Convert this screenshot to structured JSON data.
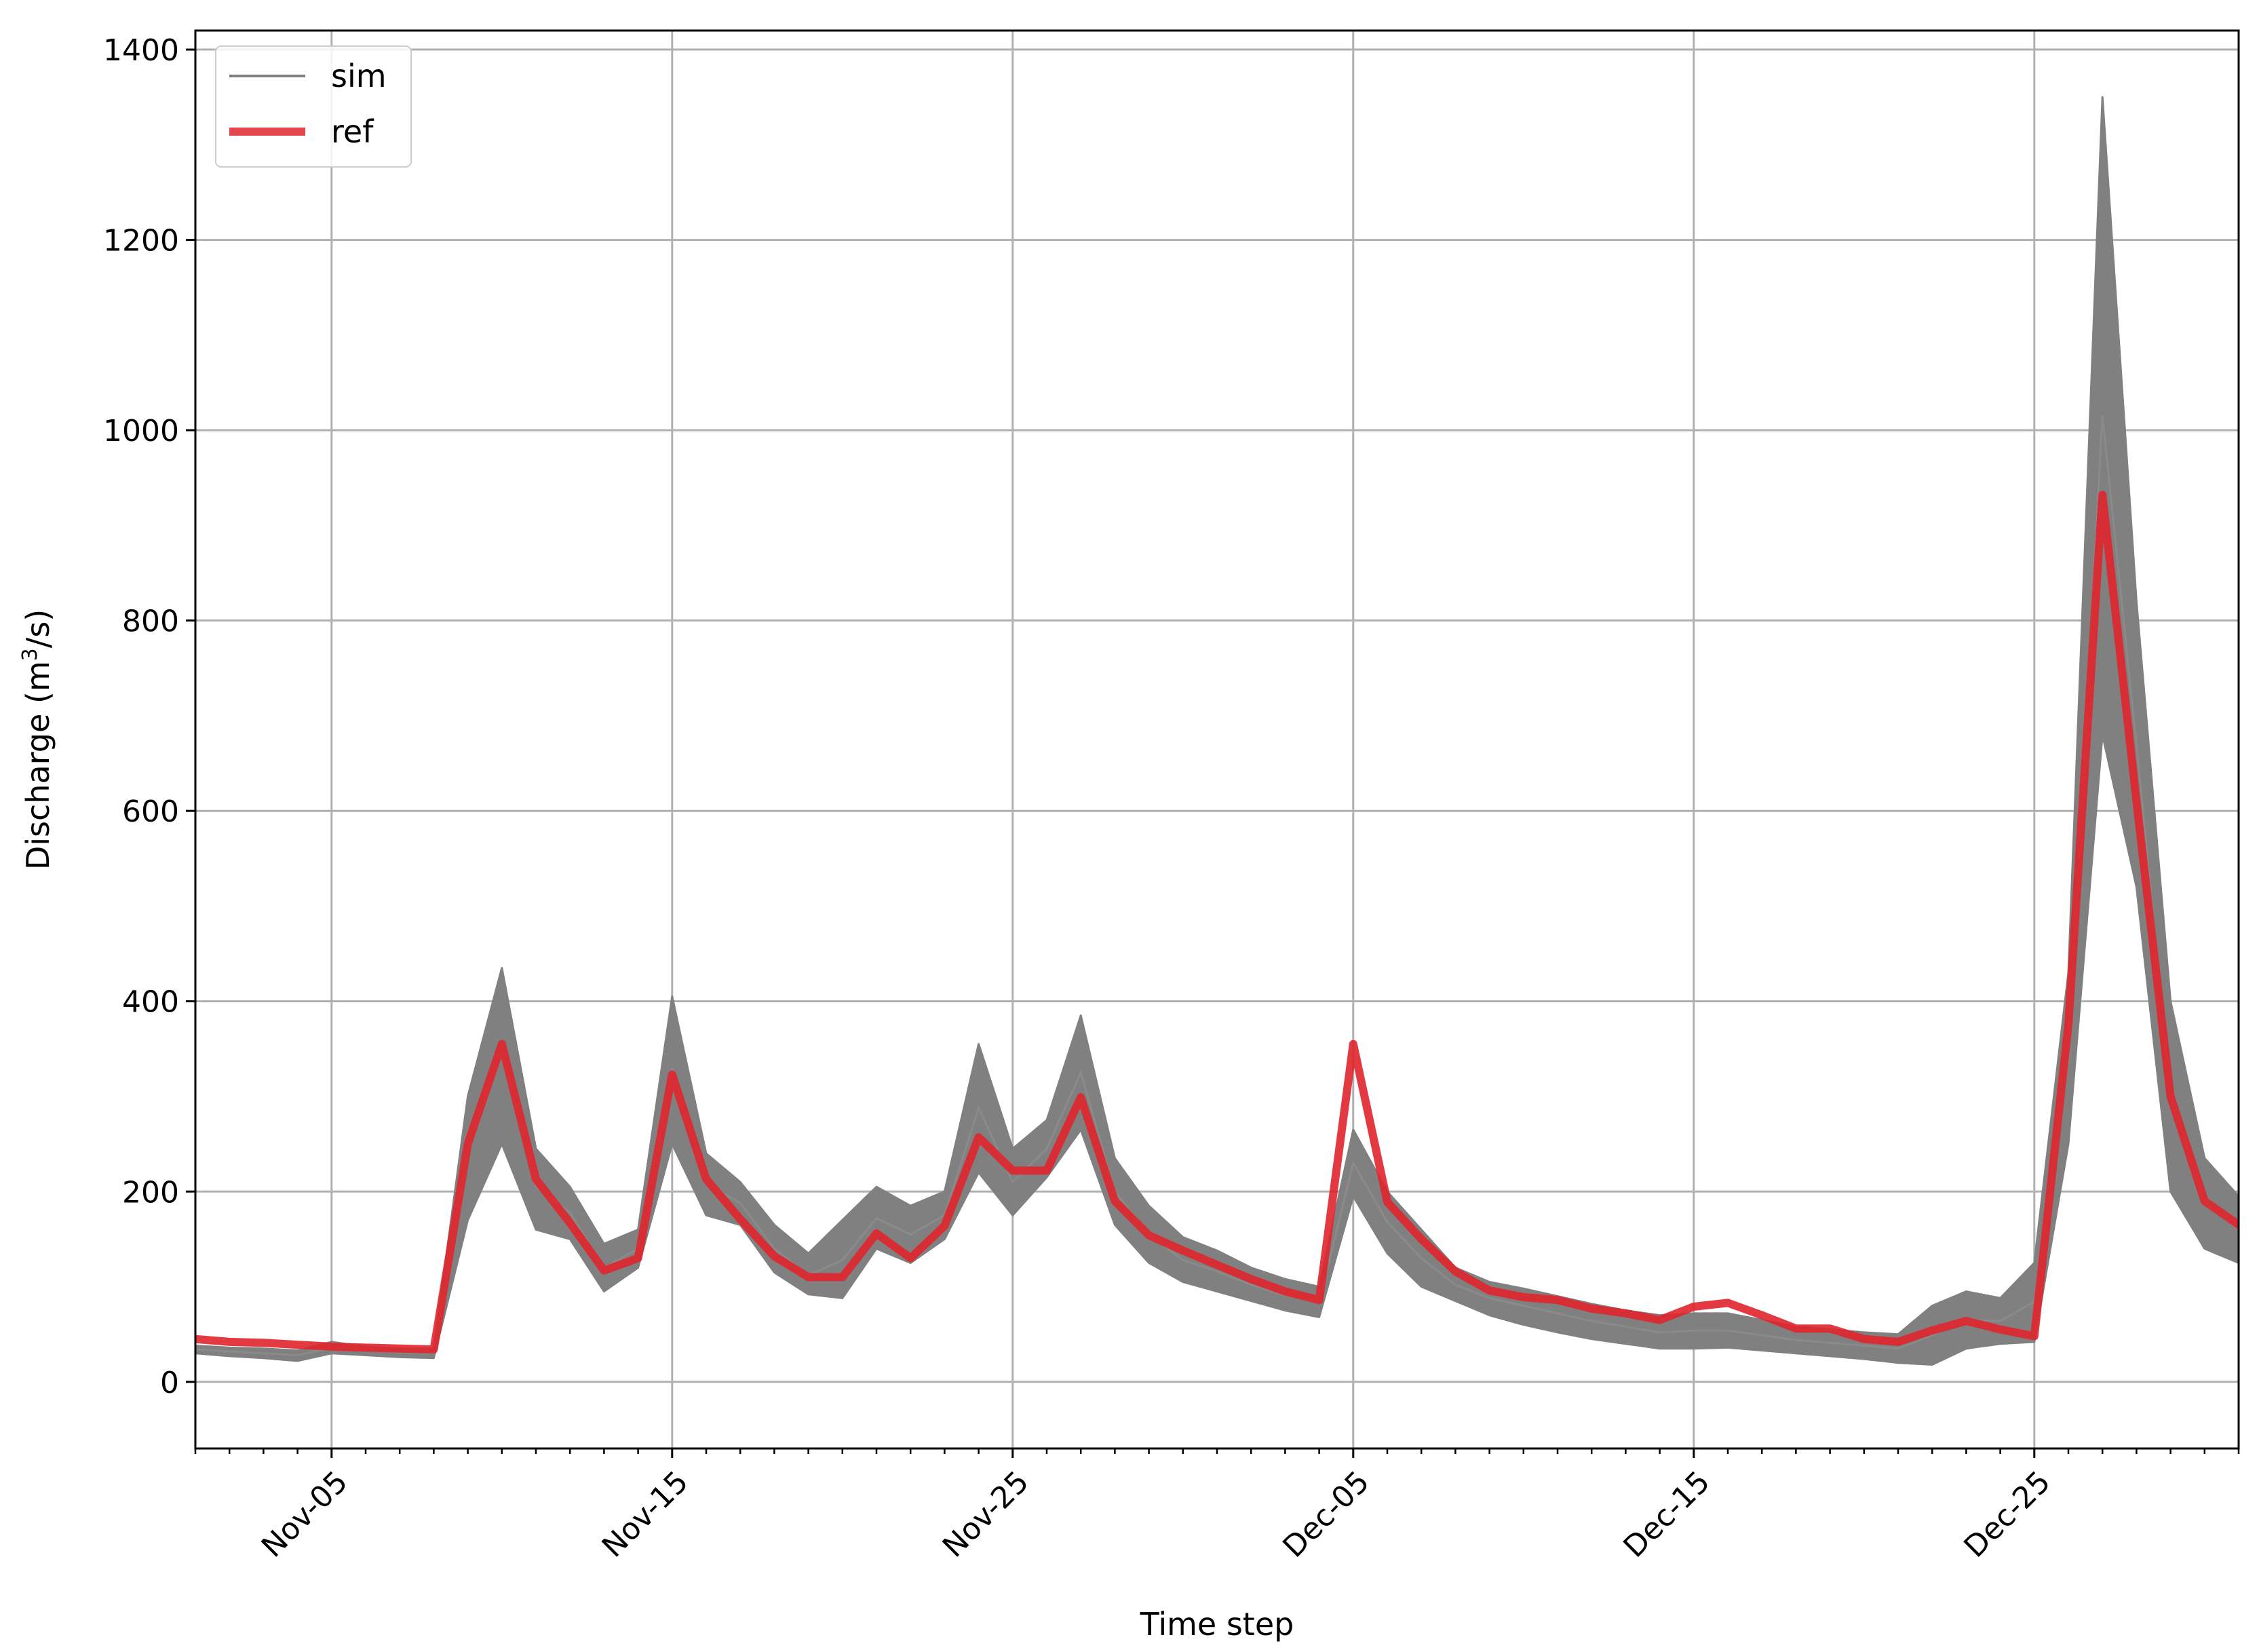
{
  "chart_data": {
    "type": "line",
    "title": "",
    "xlabel": "Time step",
    "ylabel": "Discharge (m³/s)",
    "ylabel_parts": {
      "before": "Discharge (m",
      "sup": "3",
      "after": "/s)"
    },
    "x_dates": [
      "Nov-01",
      "Nov-02",
      "Nov-03",
      "Nov-04",
      "Nov-05",
      "Nov-06",
      "Nov-07",
      "Nov-08",
      "Nov-09",
      "Nov-10",
      "Nov-11",
      "Nov-12",
      "Nov-13",
      "Nov-14",
      "Nov-15",
      "Nov-16",
      "Nov-17",
      "Nov-18",
      "Nov-19",
      "Nov-20",
      "Nov-21",
      "Nov-22",
      "Nov-23",
      "Nov-24",
      "Nov-25",
      "Nov-26",
      "Nov-27",
      "Nov-28",
      "Nov-29",
      "Nov-30",
      "Dec-01",
      "Dec-02",
      "Dec-03",
      "Dec-04",
      "Dec-05",
      "Dec-06",
      "Dec-07",
      "Dec-08",
      "Dec-09",
      "Dec-10",
      "Dec-11",
      "Dec-12",
      "Dec-13",
      "Dec-14",
      "Dec-15",
      "Dec-16",
      "Dec-17",
      "Dec-18",
      "Dec-19",
      "Dec-20",
      "Dec-21",
      "Dec-22",
      "Dec-23",
      "Dec-24",
      "Dec-25",
      "Dec-26",
      "Dec-27",
      "Dec-28",
      "Dec-29",
      "Dec-30",
      "Dec-31"
    ],
    "xlim": [
      "Nov-01",
      "Dec-31"
    ],
    "ylim": [
      -70,
      1420
    ],
    "yticks": [
      0,
      200,
      400,
      600,
      800,
      1000,
      1200,
      1400
    ],
    "xticks": [
      "Nov-05",
      "Nov-15",
      "Nov-25",
      "Dec-05",
      "Dec-15",
      "Dec-25"
    ],
    "grid": true,
    "legend_position": "top-left",
    "series": [
      {
        "name": "sim",
        "kind": "ensemble-band",
        "color": "#808080",
        "lower": [
          30,
          27,
          25,
          22,
          30,
          28,
          26,
          25,
          170,
          250,
          160,
          150,
          95,
          120,
          250,
          175,
          165,
          115,
          92,
          88,
          140,
          125,
          150,
          220,
          175,
          215,
          265,
          165,
          125,
          105,
          95,
          85,
          75,
          68,
          195,
          135,
          100,
          85,
          70,
          60,
          52,
          45,
          40,
          35,
          35,
          36,
          33,
          30,
          27,
          24,
          20,
          18,
          35,
          40,
          42,
          250,
          680,
          520,
          200,
          140,
          125
        ],
        "upper": [
          38,
          36,
          35,
          33,
          42,
          37,
          35,
          35,
          300,
          435,
          245,
          205,
          145,
          160,
          405,
          240,
          210,
          165,
          135,
          170,
          205,
          185,
          200,
          355,
          245,
          275,
          385,
          235,
          185,
          152,
          138,
          120,
          108,
          100,
          265,
          200,
          160,
          120,
          105,
          98,
          90,
          82,
          75,
          70,
          72,
          72,
          65,
          58,
          55,
          52,
          50,
          80,
          95,
          88,
          125,
          430,
          1350,
          820,
          400,
          235,
          195
        ],
        "mean": [
          34,
          32,
          30,
          28,
          36,
          33,
          31,
          30,
          240,
          345,
          205,
          178,
          120,
          140,
          330,
          208,
          188,
          140,
          112,
          128,
          172,
          155,
          175,
          288,
          210,
          245,
          325,
          200,
          155,
          128,
          116,
          102,
          91,
          84,
          230,
          168,
          130,
          102,
          88,
          80,
          72,
          64,
          58,
          52,
          54,
          54,
          49,
          44,
          41,
          38,
          35,
          49,
          65,
          64,
          84,
          340,
          1015,
          670,
          300,
          188,
          160
        ]
      },
      {
        "name": "ref",
        "kind": "line",
        "color": "#e0252e",
        "values": [
          45,
          42,
          41,
          39,
          37,
          36,
          35,
          34,
          250,
          355,
          213,
          167,
          117,
          130,
          323,
          213,
          171,
          132,
          110,
          110,
          156,
          130,
          164,
          257,
          222,
          222,
          299,
          190,
          154,
          138,
          123,
          108,
          95,
          86,
          355,
          189,
          150,
          116,
          96,
          89,
          86,
          77,
          72,
          65,
          79,
          83,
          70,
          56,
          56,
          45,
          42,
          54,
          64,
          55,
          48,
          375,
          932,
          610,
          300,
          190,
          165
        ]
      }
    ]
  }
}
